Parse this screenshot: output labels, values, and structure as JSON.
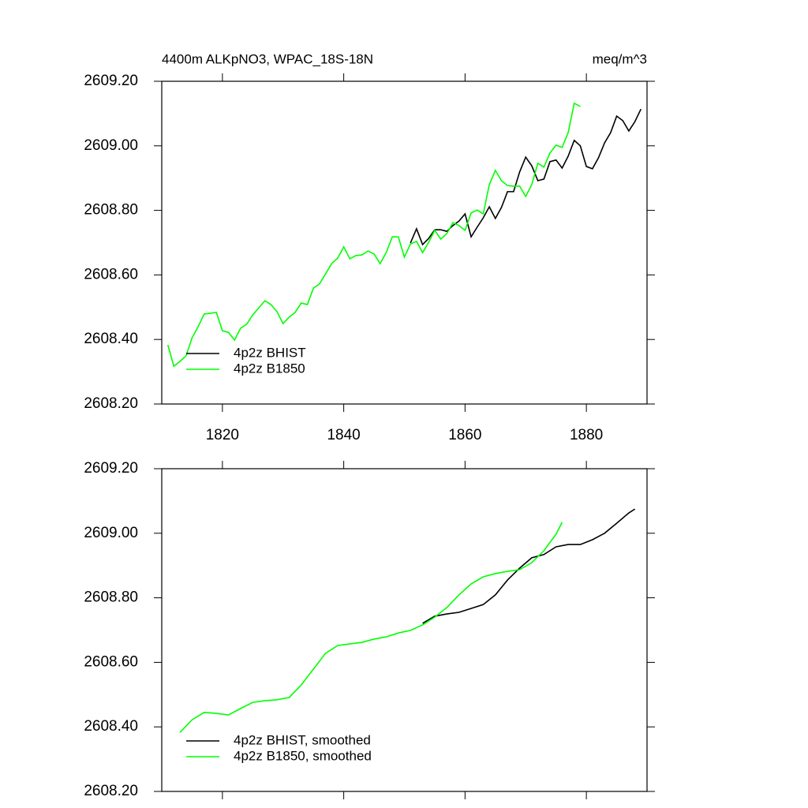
{
  "chart_data": [
    {
      "type": "line",
      "title": "4400m ALKpNO3, WPAC_18S-18N",
      "units": "meq/m^3",
      "xlim": [
        1810,
        1890
      ],
      "xticks": [
        1820,
        1840,
        1860,
        1880
      ],
      "xtick_labels": true,
      "ylim": [
        2608.2,
        2609.2
      ],
      "yticks": [
        {
          "value": 2608.2,
          "label": "2608.20"
        },
        {
          "value": 2608.4,
          "label": "2608.40"
        },
        {
          "value": 2608.6,
          "label": "2608.60"
        },
        {
          "value": 2608.8,
          "label": "2608.80"
        },
        {
          "value": 2609.0,
          "label": "2609.00"
        },
        {
          "value": 2609.2,
          "label": "2609.20"
        }
      ],
      "legend": "lower left",
      "series": [
        {
          "name": "4p2z BHIST",
          "color": "#000000",
          "x": [
            1851,
            1852,
            1853,
            1854,
            1855,
            1856,
            1857,
            1858,
            1859,
            1860,
            1861,
            1862,
            1863,
            1864,
            1865,
            1866,
            1867,
            1868,
            1869,
            1870,
            1871,
            1872,
            1873,
            1874,
            1875,
            1876,
            1877,
            1878,
            1879,
            1880,
            1881,
            1882,
            1883,
            1884,
            1885,
            1886,
            1887,
            1888,
            1889
          ],
          "values": [
            2608.699,
            2608.743,
            2608.694,
            2608.713,
            2608.74,
            2608.74,
            2608.735,
            2608.753,
            2608.767,
            2608.789,
            2608.718,
            2608.748,
            2608.777,
            2608.811,
            2608.775,
            2608.809,
            2608.858,
            2608.858,
            2608.919,
            2608.965,
            2608.938,
            2608.892,
            2608.897,
            2608.951,
            2608.956,
            2608.931,
            2608.968,
            2609.017,
            2609.0,
            2608.936,
            2608.929,
            2608.963,
            2609.009,
            2609.041,
            2609.092,
            2609.078,
            2609.046,
            2609.075,
            2609.114
          ]
        },
        {
          "name": "4p2z B1850",
          "color": "#00ff00",
          "x": [
            1811,
            1812,
            1813,
            1814,
            1815,
            1816,
            1817,
            1818,
            1819,
            1820,
            1821,
            1822,
            1823,
            1824,
            1825,
            1826,
            1827,
            1828,
            1829,
            1830,
            1831,
            1832,
            1833,
            1834,
            1835,
            1836,
            1837,
            1838,
            1839,
            1840,
            1841,
            1842,
            1843,
            1844,
            1845,
            1846,
            1847,
            1848,
            1849,
            1850,
            1851,
            1852,
            1853,
            1854,
            1855,
            1856,
            1857,
            1858,
            1859,
            1860,
            1861,
            1862,
            1863,
            1864,
            1865,
            1866,
            1867,
            1868,
            1869,
            1870,
            1871,
            1872,
            1873,
            1874,
            1875,
            1876,
            1877,
            1878,
            1879
          ],
          "values": [
            2608.383,
            2608.317,
            2608.332,
            2608.349,
            2608.405,
            2608.44,
            2608.479,
            2608.481,
            2608.484,
            2608.427,
            2608.422,
            2608.398,
            2608.435,
            2608.447,
            2608.476,
            2608.498,
            2608.52,
            2608.508,
            2608.486,
            2608.449,
            2608.469,
            2608.484,
            2608.513,
            2608.508,
            2608.559,
            2608.572,
            2608.603,
            2608.635,
            2608.652,
            2608.687,
            2608.65,
            2608.66,
            2608.662,
            2608.674,
            2608.665,
            2608.635,
            2608.669,
            2608.718,
            2608.718,
            2608.655,
            2608.696,
            2608.704,
            2608.669,
            2608.701,
            2608.738,
            2608.711,
            2608.728,
            2608.762,
            2608.753,
            2608.738,
            2608.792,
            2608.801,
            2608.789,
            2608.88,
            2608.924,
            2608.892,
            2608.877,
            2608.875,
            2608.875,
            2608.843,
            2608.88,
            2608.946,
            2608.934,
            2608.978,
            2609.002,
            2608.995,
            2609.041,
            2609.132,
            2609.122
          ]
        }
      ]
    },
    {
      "type": "line",
      "xlim": [
        1810,
        1890
      ],
      "xticks": [
        1820,
        1840,
        1860,
        1880
      ],
      "xtick_labels": false,
      "ylim": [
        2608.2,
        2609.2
      ],
      "yticks": [
        {
          "value": 2608.2,
          "label": "2608.20"
        },
        {
          "value": 2608.4,
          "label": "2608.40"
        },
        {
          "value": 2608.6,
          "label": "2608.60"
        },
        {
          "value": 2608.8,
          "label": "2608.80"
        },
        {
          "value": 2609.0,
          "label": "2609.00"
        },
        {
          "value": 2609.2,
          "label": "2609.20"
        }
      ],
      "legend": "lower left",
      "series": [
        {
          "name": "4p2z BHIST, smoothed",
          "color": "#000000",
          "x": [
            1853,
            1855,
            1857,
            1859,
            1861,
            1863,
            1865,
            1867,
            1869,
            1871,
            1873,
            1875,
            1877,
            1879,
            1881,
            1883,
            1885,
            1887,
            1888
          ],
          "values": [
            2608.721,
            2608.743,
            2608.75,
            2608.755,
            2608.767,
            2608.779,
            2608.809,
            2608.855,
            2608.892,
            2608.924,
            2608.934,
            2608.958,
            2608.965,
            2608.965,
            2608.98,
            2609.0,
            2609.031,
            2609.063,
            2609.075
          ]
        },
        {
          "name": "4p2z B1850, smoothed",
          "color": "#00ff00",
          "x": [
            1813,
            1815,
            1817,
            1819,
            1821,
            1823,
            1825,
            1827,
            1829,
            1831,
            1833,
            1835,
            1837,
            1839,
            1841,
            1843,
            1845,
            1847,
            1849,
            1851,
            1853,
            1855,
            1857,
            1859,
            1861,
            1863,
            1865,
            1867,
            1869,
            1871,
            1873,
            1875,
            1876
          ],
          "values": [
            2608.383,
            2608.422,
            2608.445,
            2608.442,
            2608.437,
            2608.457,
            2608.476,
            2608.481,
            2608.484,
            2608.491,
            2608.53,
            2608.579,
            2608.628,
            2608.652,
            2608.657,
            2608.662,
            2608.672,
            2608.679,
            2608.691,
            2608.699,
            2608.716,
            2608.74,
            2608.77,
            2608.809,
            2608.843,
            2608.865,
            2608.875,
            2608.882,
            2608.887,
            2608.909,
            2608.946,
            2608.997,
            2609.034
          ]
        }
      ]
    }
  ]
}
